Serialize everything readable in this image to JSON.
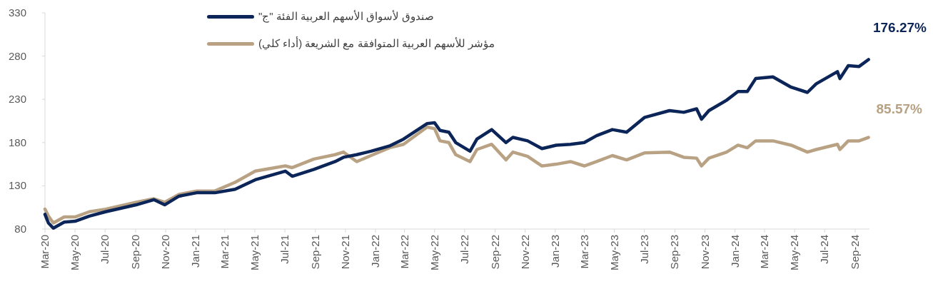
{
  "chart_data": {
    "type": "line",
    "legend": "top",
    "x": [
      "2020-03-01",
      "2020-03-08",
      "2020-03-18",
      "2020-04-09",
      "2020-05-01",
      "2020-05-30",
      "2020-07-02",
      "2020-09-02",
      "2020-10-08",
      "2020-10-30",
      "2020-11-28",
      "2021-01-03",
      "2021-02-09",
      "2021-03-22",
      "2021-05-02",
      "2021-07-02",
      "2021-07-16",
      "2021-08-29",
      "2021-10-11",
      "2021-10-28",
      "2021-11-24",
      "2021-12-23",
      "2022-01-29",
      "2022-02-27",
      "2022-04-16",
      "2022-05-01",
      "2022-05-12",
      "2022-05-30",
      "2022-06-13",
      "2022-07-12",
      "2022-07-26",
      "2022-08-25",
      "2022-09-23",
      "2022-10-07",
      "2022-11-06",
      "2022-12-05",
      "2023-01-03",
      "2023-02-01",
      "2023-03-01",
      "2023-03-26",
      "2023-04-27",
      "2023-05-26",
      "2023-07-01",
      "2023-08-21",
      "2023-09-19",
      "2023-10-15",
      "2023-10-25",
      "2023-11-09",
      "2023-12-15",
      "2024-01-07",
      "2024-01-26",
      "2024-02-12",
      "2024-03-18",
      "2024-04-24",
      "2024-05-27",
      "2024-06-14",
      "2024-07-27",
      "2024-08-01",
      "2024-08-18",
      "2024-09-09",
      "2024-09-28"
    ],
    "series": [
      {
        "name": "صندوق لأسواق الأسهم العربية الفئة \"ج\"",
        "color": "#0c2559",
        "values": [
          97,
          87,
          81,
          88,
          89,
          95,
          100,
          108,
          114,
          108,
          118,
          122,
          122,
          126,
          137,
          147,
          141,
          149,
          158,
          163,
          166,
          170,
          176,
          184,
          202,
          203,
          194,
          192,
          180,
          170,
          184,
          195,
          180,
          186,
          182,
          173,
          177,
          178,
          180,
          188,
          195,
          192,
          209,
          217,
          215,
          219,
          207,
          217,
          229,
          239,
          239,
          254,
          256,
          244,
          238,
          248,
          262,
          254,
          269,
          268,
          276
        ]
      },
      {
        "name": "مؤشر للأسهم العربية المتوافقة مع الشريعة (أداء كلي)",
        "color": "#b8a283",
        "values": [
          103,
          95,
          87,
          94,
          94,
          100,
          103,
          111,
          115,
          111,
          120,
          124,
          124,
          134,
          147,
          153,
          151,
          161,
          166,
          169,
          158,
          165,
          174,
          178,
          198,
          196,
          182,
          180,
          166,
          158,
          172,
          178,
          160,
          169,
          164,
          153,
          155,
          158,
          153,
          158,
          165,
          160,
          168,
          169,
          163,
          162,
          153,
          162,
          169,
          177,
          174,
          182,
          182,
          177,
          169,
          172,
          178,
          172,
          182,
          182,
          186
        ]
      }
    ],
    "annotations": [
      "176.27%",
      "85.57%"
    ],
    "xlim": [
      "2020-03-01",
      "2024-09-30"
    ],
    "xticks": [
      {
        "value": "2020-03",
        "label": "Mar-20"
      },
      {
        "value": "2020-05",
        "label": "May-20"
      },
      {
        "value": "2020-07",
        "label": "Jul-20"
      },
      {
        "value": "2020-09",
        "label": "Sep-20"
      },
      {
        "value": "2020-11",
        "label": "Nov-20"
      },
      {
        "value": "2021-01",
        "label": "Jan-21"
      },
      {
        "value": "2021-03",
        "label": "Mar-21"
      },
      {
        "value": "2021-05",
        "label": "May-21"
      },
      {
        "value": "2021-07",
        "label": "Jul-21"
      },
      {
        "value": "2021-09",
        "label": "Sep-21"
      },
      {
        "value": "2021-11",
        "label": "Nov-21"
      },
      {
        "value": "2022-01",
        "label": "Jan-22"
      },
      {
        "value": "2022-03",
        "label": "Mar-22"
      },
      {
        "value": "2022-05",
        "label": "May-22"
      },
      {
        "value": "2022-07",
        "label": "Jul-22"
      },
      {
        "value": "2022-09",
        "label": "Sep-22"
      },
      {
        "value": "2022-11",
        "label": "Nov-22"
      },
      {
        "value": "2023-01",
        "label": "Jan-23"
      },
      {
        "value": "2023-03",
        "label": "Mar-23"
      },
      {
        "value": "2023-05",
        "label": "May-23"
      },
      {
        "value": "2023-07",
        "label": "Jul-23"
      },
      {
        "value": "2023-09",
        "label": "Sep-23"
      },
      {
        "value": "2023-11",
        "label": "Nov-23"
      },
      {
        "value": "2024-01",
        "label": "Jan-24"
      },
      {
        "value": "2024-03",
        "label": "Mar-24"
      },
      {
        "value": "2024-05",
        "label": "May-24"
      },
      {
        "value": "2024-07",
        "label": "Jul-24"
      },
      {
        "value": "2024-09",
        "label": "Sep-24"
      }
    ],
    "ylim": [
      80,
      330
    ],
    "yticks": [
      80,
      130,
      180,
      230,
      280,
      330
    ]
  }
}
